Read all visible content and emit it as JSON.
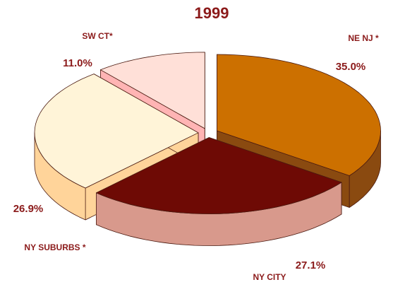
{
  "chart_data": {
    "type": "pie3d",
    "title": "1999",
    "categories": [
      "NE NJ *",
      "NY CITY",
      "NY SUBURBS *",
      "SW CT*"
    ],
    "values": [
      35.0,
      27.1,
      26.9,
      11.0
    ],
    "value_labels": [
      "35.0%",
      "27.1%",
      "26.9%",
      "11.0%"
    ],
    "colors": [
      "#cc7000",
      "#6e0a05",
      "#fff4d8",
      "#ffe0d8"
    ],
    "side_colors": [
      "#8a4a10",
      "#d8998c",
      "#ffd49a",
      "#ffb4b4"
    ]
  }
}
